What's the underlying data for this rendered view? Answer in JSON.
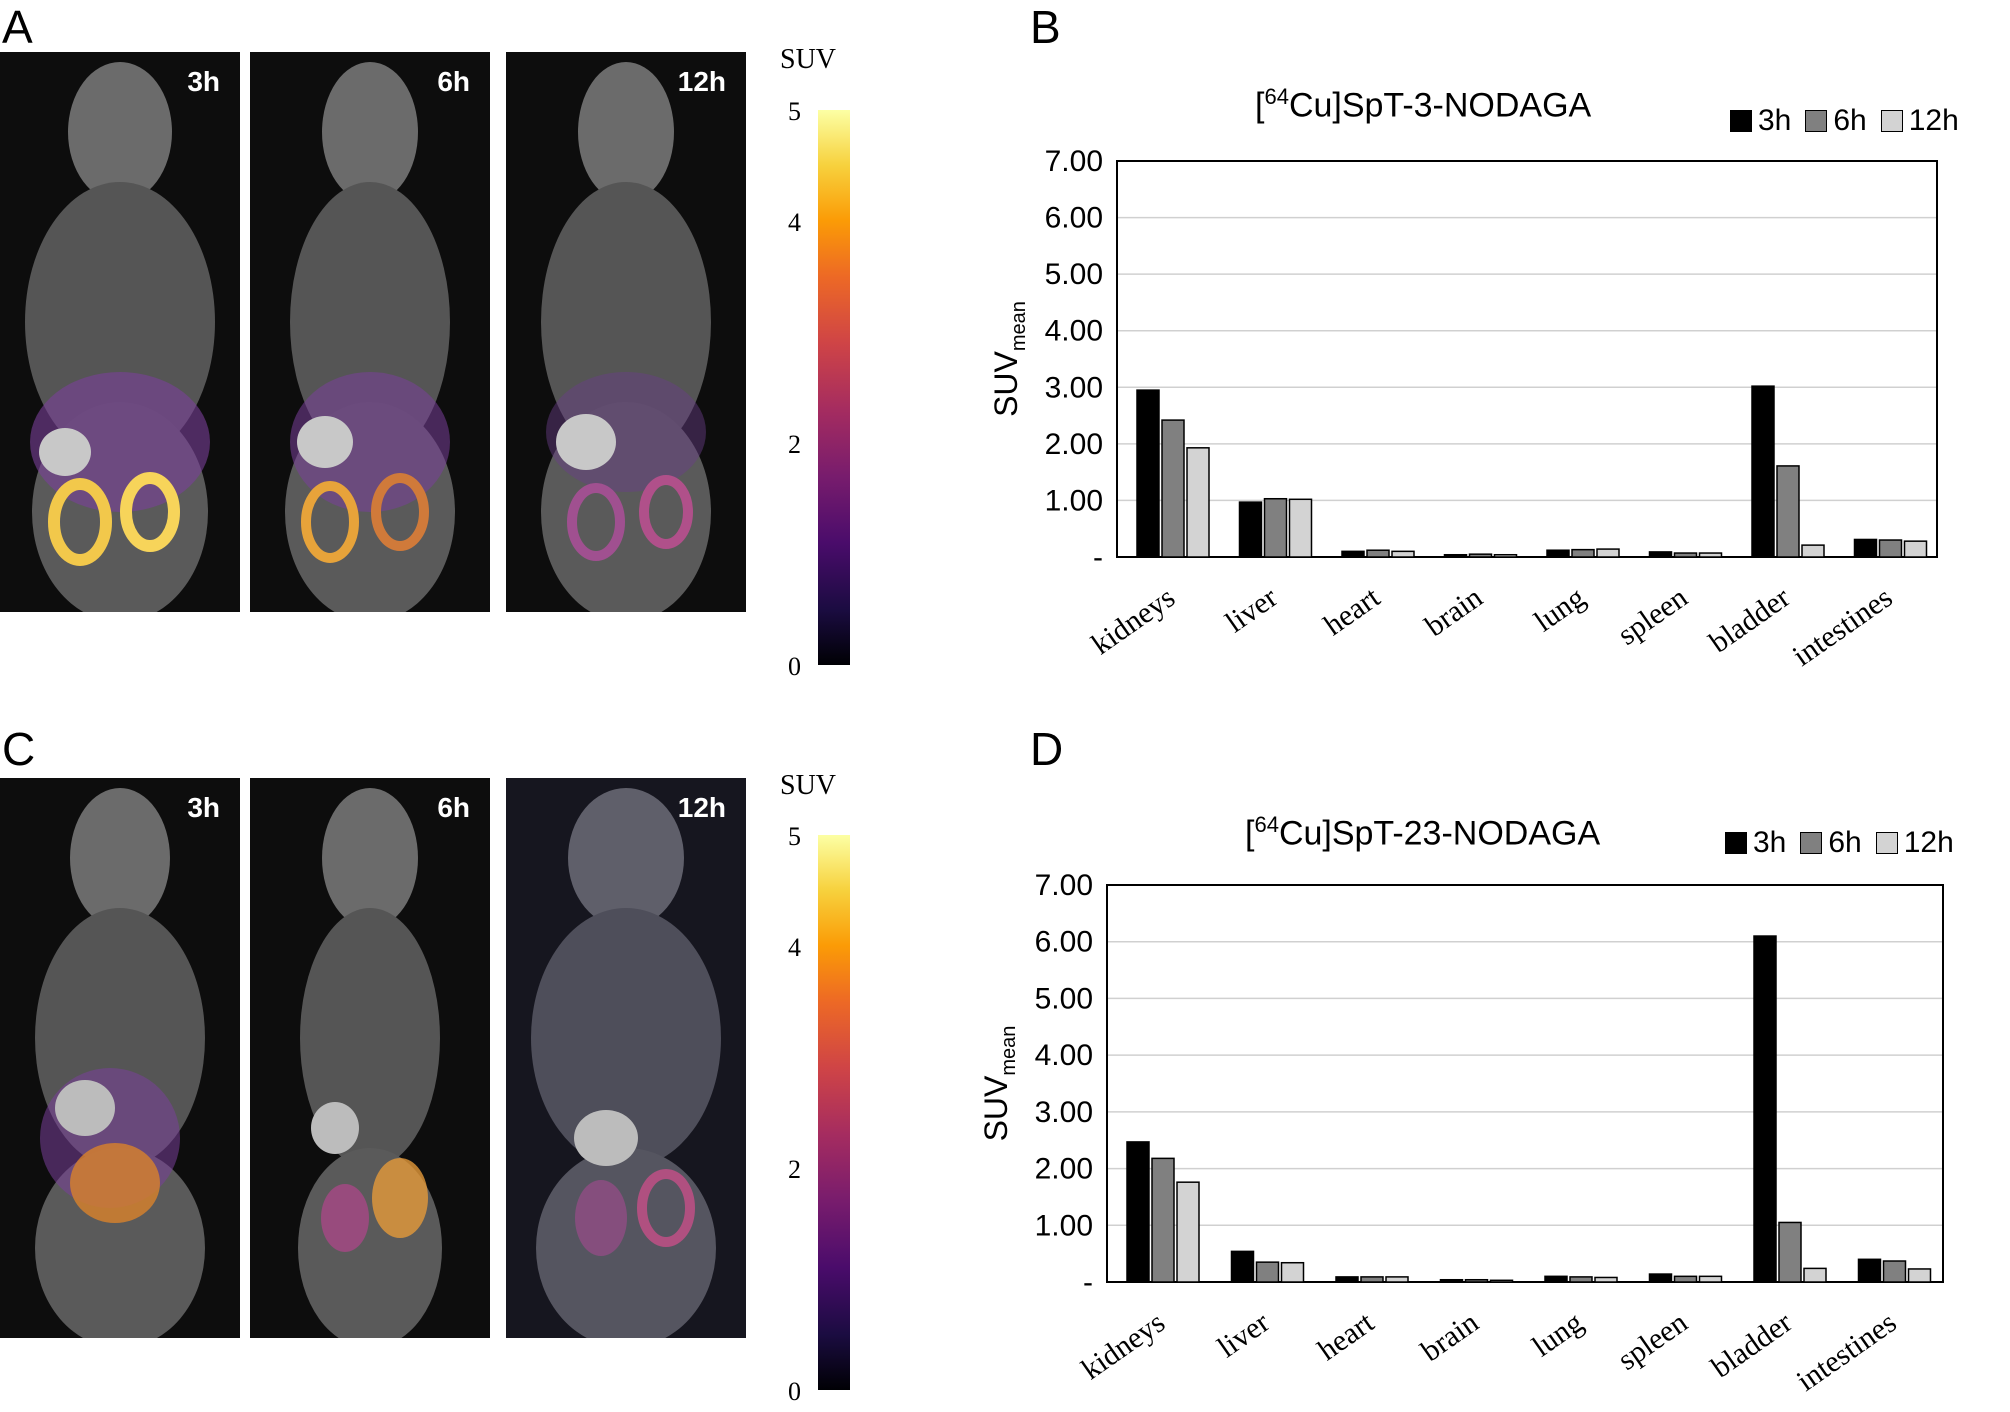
{
  "panels": {
    "A": "A",
    "B": "B",
    "C": "C",
    "D": "D"
  },
  "scale": {
    "title": "SUV",
    "ticks": [
      "0",
      "2",
      "4",
      "5"
    ]
  },
  "time_labels": [
    "3h",
    "6h",
    "12h"
  ],
  "colors": {
    "s3h": "#000000",
    "s6h": "#808080",
    "s12h": "#d3d3d3"
  },
  "chart_data": [
    {
      "type": "bar",
      "title_sup": "64",
      "title_pre": "[",
      "title_post": "Cu]SpT-3-NODAGA",
      "ylabel_main": "SUV",
      "ylabel_sub": "mean",
      "yticks": [
        "-",
        "1.00",
        "2.00",
        "3.00",
        "4.00",
        "5.00",
        "6.00",
        "7.00"
      ],
      "ylim": [
        0,
        7
      ],
      "grid": true,
      "legend_position": "top-right",
      "categories": [
        "kidneys",
        "liver",
        "heart",
        "brain",
        "lung",
        "spleen",
        "bladder",
        "intestines"
      ],
      "series": [
        {
          "name": "3h",
          "values": [
            2.95,
            0.97,
            0.1,
            0.04,
            0.12,
            0.09,
            3.02,
            0.31
          ]
        },
        {
          "name": "6h",
          "values": [
            2.42,
            1.03,
            0.12,
            0.05,
            0.13,
            0.07,
            1.61,
            0.3
          ]
        },
        {
          "name": "12h",
          "values": [
            1.93,
            1.02,
            0.1,
            0.04,
            0.14,
            0.07,
            0.21,
            0.28
          ]
        }
      ]
    },
    {
      "type": "bar",
      "title_sup": "64",
      "title_pre": "[",
      "title_post": "Cu]SpT-23-NODAGA",
      "ylabel_main": "SUV",
      "ylabel_sub": "mean",
      "yticks": [
        "-",
        "1.00",
        "2.00",
        "3.00",
        "4.00",
        "5.00",
        "6.00",
        "7.00"
      ],
      "ylim": [
        0,
        7
      ],
      "grid": true,
      "legend_position": "top-right",
      "categories": [
        "kidneys",
        "liver",
        "heart",
        "brain",
        "lung",
        "spleen",
        "bladder",
        "intestines"
      ],
      "series": [
        {
          "name": "3h",
          "values": [
            2.47,
            0.54,
            0.09,
            0.04,
            0.1,
            0.14,
            6.1,
            0.4
          ]
        },
        {
          "name": "6h",
          "values": [
            2.18,
            0.35,
            0.09,
            0.04,
            0.09,
            0.1,
            1.05,
            0.37
          ]
        },
        {
          "name": "12h",
          "values": [
            1.76,
            0.34,
            0.09,
            0.03,
            0.08,
            0.1,
            0.24,
            0.23
          ]
        }
      ]
    }
  ]
}
